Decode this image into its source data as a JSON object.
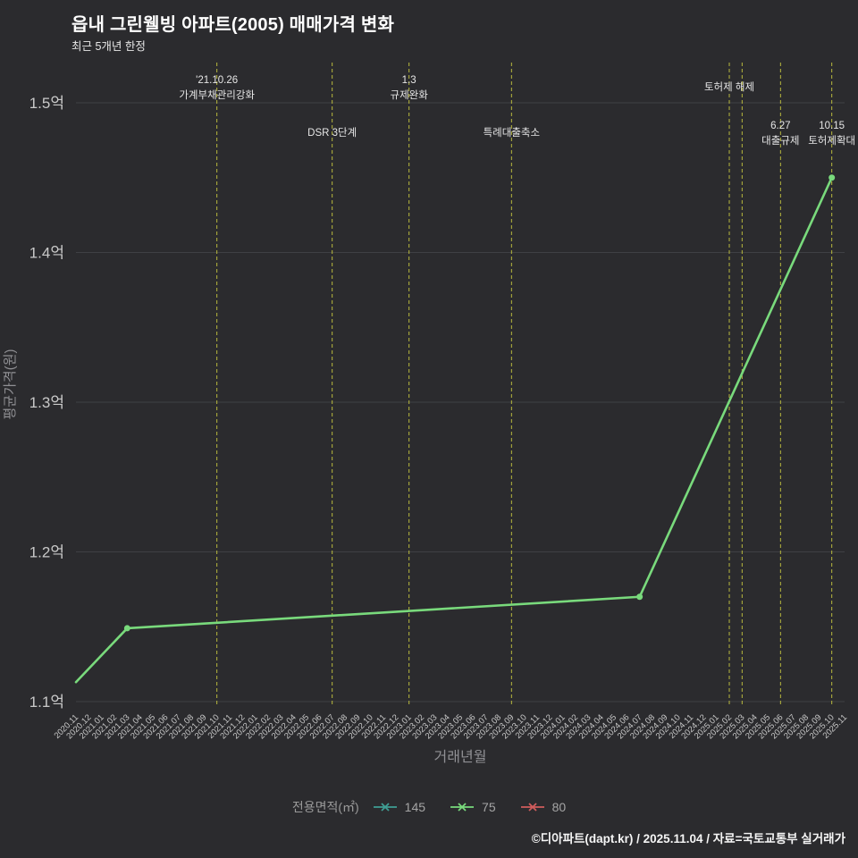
{
  "title": "읍내 그린웰빙 아파트(2005) 매매가격 변화",
  "subtitle": "최근 5개년 한정",
  "footer": "©디아파트(dapt.kr) / 2025.11.04 / 자료=국토교통부 실거래가",
  "colors": {
    "background": "#2b2b2e",
    "grid": "#3f4044",
    "tick_text": "#c9c9c9",
    "axis_title": "#909094",
    "event_line": "#b9b93e",
    "event_text": "#e6e6e6",
    "title_text": "#ffffff",
    "footer_text": "#f5f5f5",
    "series_145": "#3f9e94",
    "series_75": "#79da7c",
    "series_80": "#d05c5c"
  },
  "chart_data": {
    "type": "line",
    "title": "읍내 그린웰빙 아파트(2005) 매매가격 변화",
    "xlabel": "거래년월",
    "ylabel": "평균가격(원)",
    "ylim": [
      1.1,
      1.5
    ],
    "grid": true,
    "yticks": [
      {
        "value": 1.1,
        "label": "1.1억"
      },
      {
        "value": 1.2,
        "label": "1.2억"
      },
      {
        "value": 1.3,
        "label": "1.3억"
      },
      {
        "value": 1.4,
        "label": "1.4억"
      },
      {
        "value": 1.5,
        "label": "1.5억"
      }
    ],
    "x_categories": [
      "2020.11",
      "2020.12",
      "2021.01",
      "2021.02",
      "2021.03",
      "2021.04",
      "2021.05",
      "2021.06",
      "2021.07",
      "2021.08",
      "2021.09",
      "2021.10",
      "2021.11",
      "2021.12",
      "2022.01",
      "2022.02",
      "2022.03",
      "2022.04",
      "2022.05",
      "2022.06",
      "2022.07",
      "2022.08",
      "2022.09",
      "2022.10",
      "2022.11",
      "2022.12",
      "2023.01",
      "2023.02",
      "2023.03",
      "2023.04",
      "2023.05",
      "2023.06",
      "2023.07",
      "2023.08",
      "2023.09",
      "2023.10",
      "2023.11",
      "2023.12",
      "2024.01",
      "2024.02",
      "2024.03",
      "2024.04",
      "2024.05",
      "2024.06",
      "2024.07",
      "2024.08",
      "2024.09",
      "2024.10",
      "2024.11",
      "2024.12",
      "2025.01",
      "2025.02",
      "2025.03",
      "2025.04",
      "2025.05",
      "2025.06",
      "2025.07",
      "2025.08",
      "2025.09",
      "2025.10",
      "2025.11"
    ],
    "series": [
      {
        "name": "145",
        "color": "#3f9e94",
        "points": []
      },
      {
        "name": "75",
        "color": "#79da7c",
        "points": [
          {
            "x": "2020.11",
            "y": 1.113,
            "dot": false
          },
          {
            "x": "2021.03",
            "y": 1.149,
            "dot": true
          },
          {
            "x": "2024.07",
            "y": 1.17,
            "dot": true
          },
          {
            "x": "2025.10",
            "y": 1.45,
            "dot": true
          }
        ]
      },
      {
        "name": "80",
        "color": "#d05c5c",
        "points": []
      }
    ],
    "legend": {
      "title": "전용면적(㎡)",
      "position": "bottom-center",
      "entries": [
        {
          "label": "145",
          "color": "#3f9e94"
        },
        {
          "label": "75",
          "color": "#79da7c"
        },
        {
          "label": "80",
          "color": "#d05c5c"
        }
      ]
    },
    "annotations": [
      {
        "x": "2021.10",
        "level": "top",
        "lines": [
          "'21.10.26",
          "가계부채관리강화"
        ]
      },
      {
        "x": "2022.07",
        "level": "mid",
        "lines": [
          "DSR 3단계"
        ]
      },
      {
        "x": "2023.01",
        "level": "top",
        "lines": [
          "1.3",
          "규제완화"
        ]
      },
      {
        "x": "2023.09",
        "level": "mid",
        "lines": [
          "특례대출축소"
        ]
      },
      {
        "x": "2025.02",
        "level": "top",
        "lines": [
          "토허제 해제"
        ]
      },
      {
        "x": "2025.03",
        "level": "top",
        "lines": []
      },
      {
        "x": "2025.06",
        "level": "mid",
        "lines": [
          "6.27",
          "대출규제"
        ]
      },
      {
        "x": "2025.10",
        "level": "mid",
        "lines": [
          "10.15",
          "토허제확대"
        ]
      }
    ]
  }
}
